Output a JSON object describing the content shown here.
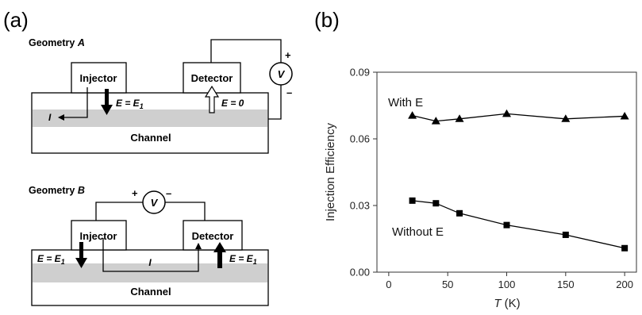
{
  "panel_a": {
    "label": "(a)",
    "geometry_a": {
      "title_prefix": "Geometry ",
      "title_letter": "A",
      "injector_label": "Injector",
      "detector_label": "Detector",
      "channel_label": "Channel",
      "voltmeter_label": "V",
      "plus_sign": "+",
      "minus_sign": "–",
      "current_label": "I",
      "field_injector": "E = E",
      "field_injector_sub": "1",
      "field_detector": "E = 0"
    },
    "geometry_b": {
      "title_prefix": "Geometry ",
      "title_letter": "B",
      "injector_label": "Injector",
      "detector_label": "Detector",
      "channel_label": "Channel",
      "voltmeter_label": "V",
      "plus_sign": "+",
      "minus_sign": "–",
      "current_label": "I",
      "field_left": "E = E",
      "field_left_sub": "1",
      "field_right": "E = E",
      "field_right_sub": "1"
    }
  },
  "panel_b": {
    "label": "(b)"
  },
  "chart_data": {
    "type": "line",
    "xlabel_var": "T",
    "xlabel_unit": " (K)",
    "ylabel": "Injection Efficiency",
    "xlim": [
      -10,
      210
    ],
    "ylim": [
      0,
      0.09
    ],
    "xticks": [
      0,
      50,
      100,
      150,
      200
    ],
    "yticks": [
      0.0,
      0.03,
      0.06,
      0.09
    ],
    "ytick_labels": [
      "0.00",
      "0.03",
      "0.06",
      "0.09"
    ],
    "grid": false,
    "series": [
      {
        "name": "With E",
        "marker": "triangle",
        "x": [
          20,
          40,
          60,
          100,
          150,
          200
        ],
        "y": [
          0.0705,
          0.068,
          0.069,
          0.0713,
          0.069,
          0.0702
        ]
      },
      {
        "name": "Without E",
        "marker": "square",
        "x": [
          20,
          40,
          60,
          100,
          150,
          200
        ],
        "y": [
          0.0322,
          0.031,
          0.0265,
          0.0212,
          0.0168,
          0.0108
        ]
      }
    ]
  }
}
